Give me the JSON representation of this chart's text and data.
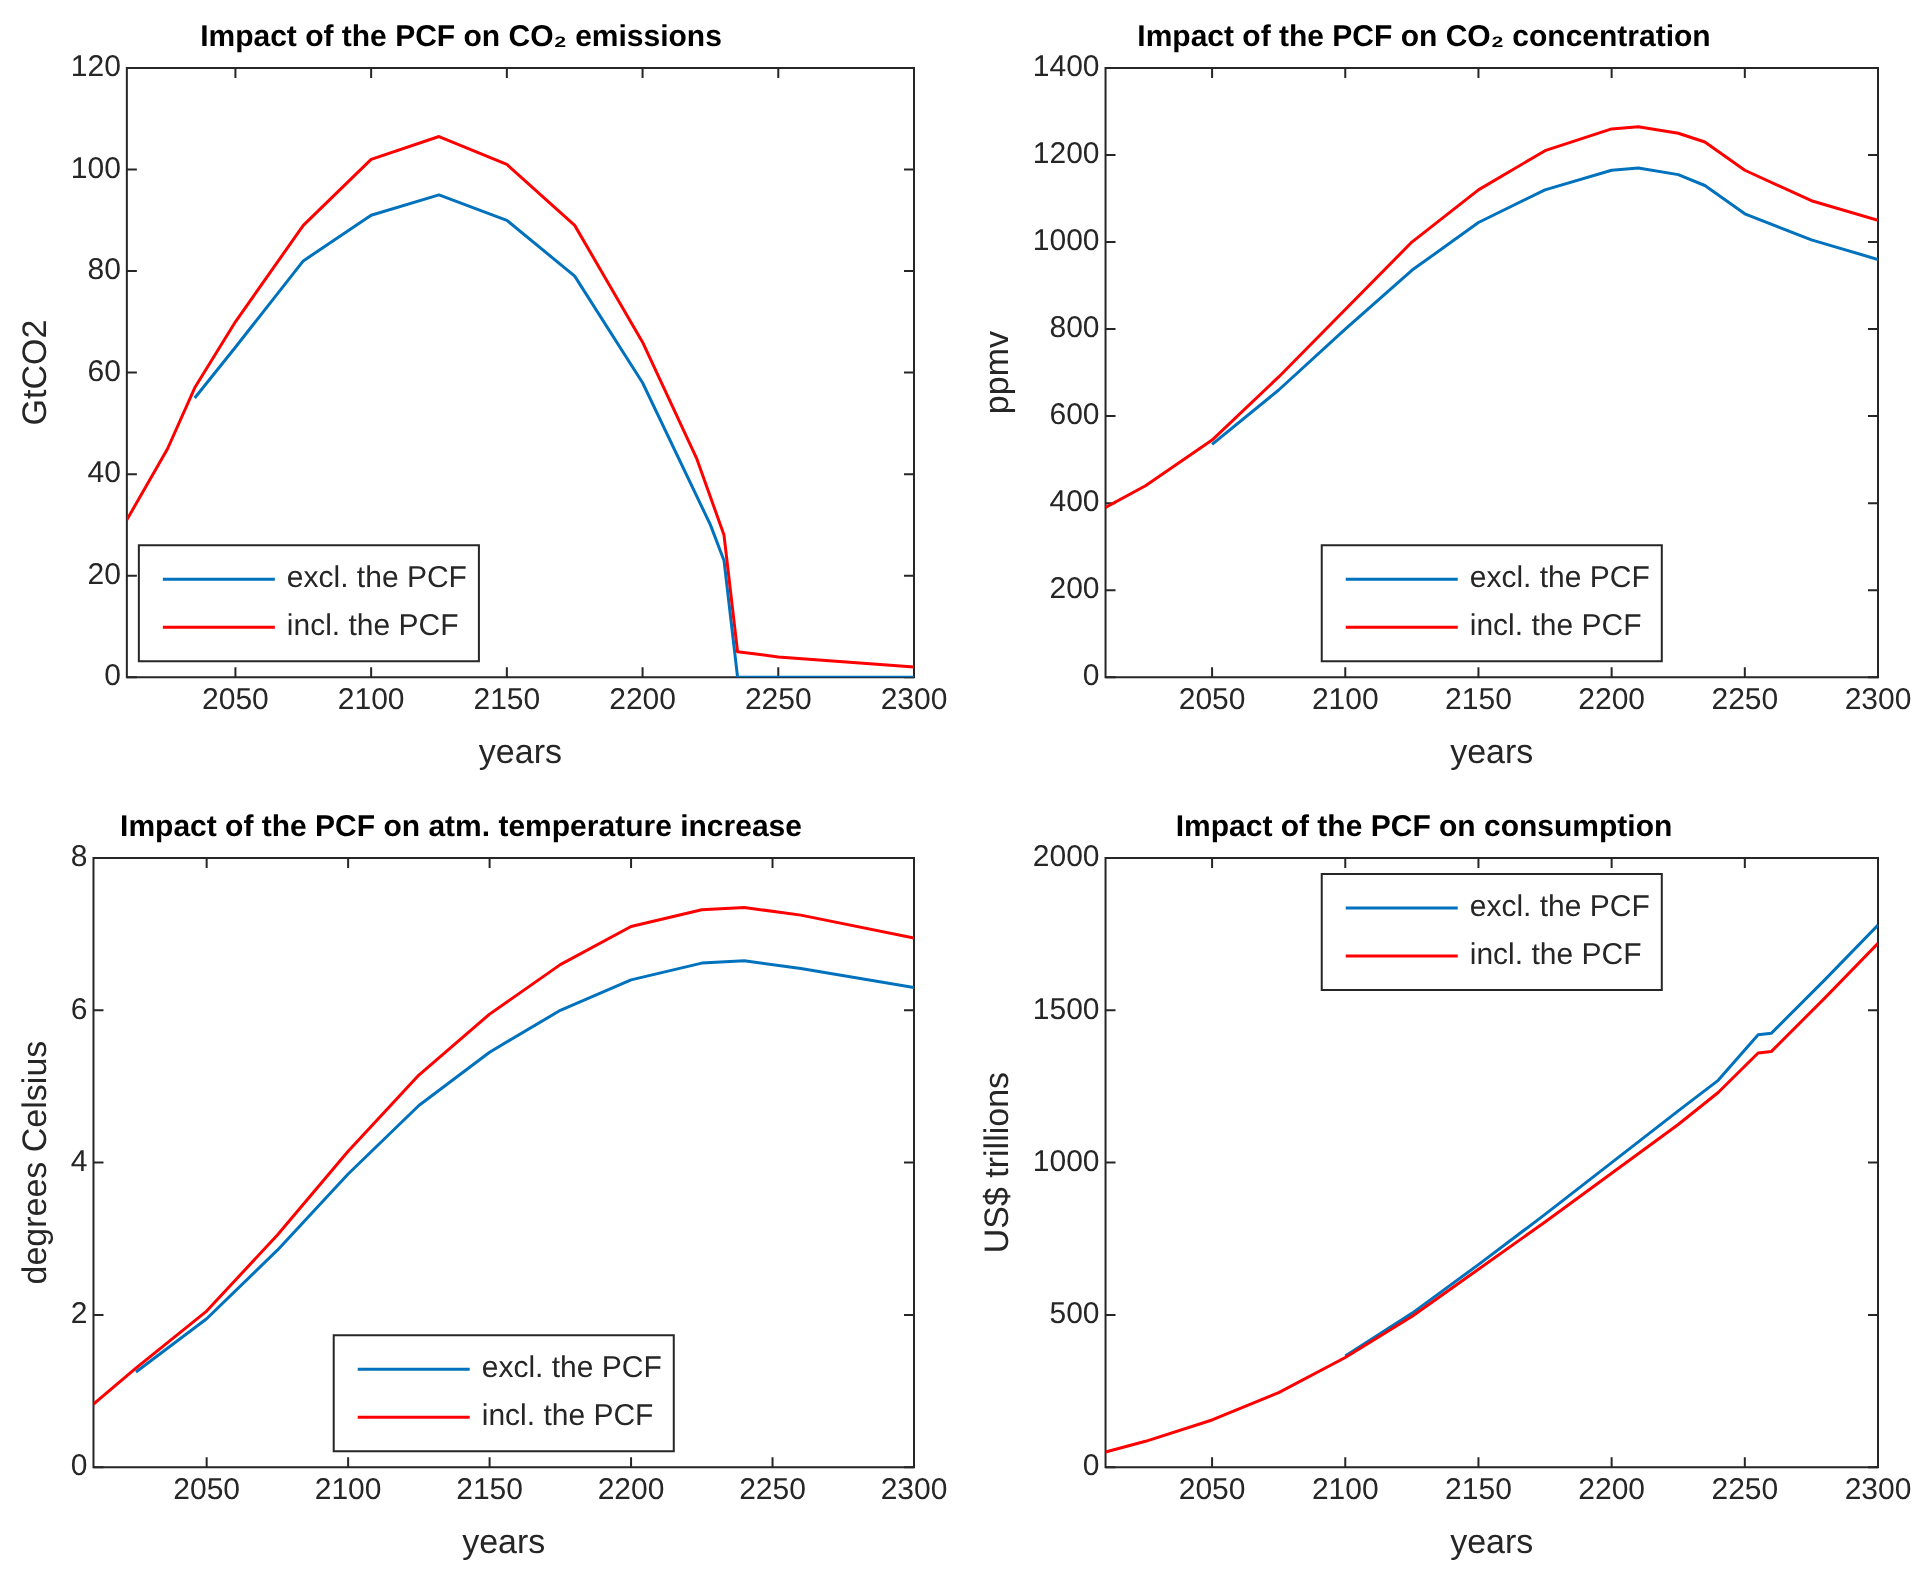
{
  "chart_data": [
    {
      "type": "line",
      "title": "Impact of the PCF on CO₂ emissions",
      "xlabel": "years",
      "ylabel": "GtCO2",
      "xlim": [
        2010,
        2300
      ],
      "xticks": [
        2050,
        2100,
        2150,
        2200,
        2250,
        2300
      ],
      "ylim": [
        0,
        120
      ],
      "yticks": [
        0,
        20,
        40,
        60,
        80,
        100,
        120
      ],
      "grid": false,
      "legend": "bottom left",
      "marker": "none",
      "line_style": "solid",
      "series": [
        {
          "name": "excl. the PCF",
          "color": "#0072bd",
          "x": [
            2035,
            2050,
            2075,
            2100,
            2125,
            2150,
            2175,
            2200,
            2225,
            2230,
            2235,
            2250,
            2275,
            2300
          ],
          "values": [
            55,
            65,
            82,
            91,
            95,
            90,
            79,
            58,
            30,
            23,
            0,
            0,
            0,
            0
          ]
        },
        {
          "name": "incl. the PCF",
          "color": "#ff0000",
          "x": [
            2010,
            2025,
            2035,
            2050,
            2075,
            2100,
            2125,
            2150,
            2175,
            2200,
            2220,
            2230,
            2235,
            2250,
            2275,
            2300
          ],
          "values": [
            31,
            45,
            57,
            70,
            89,
            102,
            106.5,
            101,
            89,
            66,
            43,
            28,
            5,
            4,
            3,
            2
          ]
        }
      ]
    },
    {
      "type": "line",
      "title": "Impact of the PCF on CO₂ concentration",
      "xlabel": "years",
      "ylabel": "ppmv",
      "xlim": [
        2010,
        2300
      ],
      "xticks": [
        2050,
        2100,
        2150,
        2200,
        2250,
        2300
      ],
      "ylim": [
        0,
        1400
      ],
      "yticks": [
        0,
        200,
        400,
        600,
        800,
        1000,
        1200,
        1400
      ],
      "grid": false,
      "legend": "bottom",
      "marker": "none",
      "line_style": "solid",
      "series": [
        {
          "name": "excl. the PCF",
          "color": "#0072bd",
          "x": [
            2050,
            2075,
            2100,
            2125,
            2150,
            2175,
            2200,
            2210,
            2225,
            2235,
            2250,
            2275,
            2300
          ],
          "values": [
            535,
            660,
            800,
            935,
            1045,
            1120,
            1165,
            1170,
            1155,
            1130,
            1065,
            1005,
            960
          ]
        },
        {
          "name": "incl. the PCF",
          "color": "#ff0000",
          "x": [
            2010,
            2025,
            2050,
            2075,
            2100,
            2125,
            2150,
            2175,
            2200,
            2210,
            2225,
            2235,
            2250,
            2275,
            2300
          ],
          "values": [
            390,
            440,
            545,
            690,
            845,
            1000,
            1120,
            1210,
            1260,
            1265,
            1250,
            1230,
            1165,
            1095,
            1050
          ]
        }
      ]
    },
    {
      "type": "line",
      "title": "Impact of the PCF on atm. temperature increase",
      "xlabel": "years",
      "ylabel": "degrees Celsius",
      "xlim": [
        2010,
        2300
      ],
      "xticks": [
        2050,
        2100,
        2150,
        2200,
        2250,
        2300
      ],
      "ylim": [
        0,
        8
      ],
      "yticks": [
        0,
        2,
        4,
        6,
        8
      ],
      "grid": false,
      "legend": "bottom",
      "marker": "none",
      "line_style": "solid",
      "series": [
        {
          "name": "excl. the PCF",
          "color": "#0072bd",
          "x": [
            2025,
            2050,
            2075,
            2100,
            2125,
            2150,
            2175,
            2200,
            2225,
            2240,
            2260,
            2300
          ],
          "values": [
            1.25,
            1.95,
            2.85,
            3.85,
            4.75,
            5.45,
            6.0,
            6.4,
            6.62,
            6.65,
            6.55,
            6.3
          ]
        },
        {
          "name": "incl. the PCF",
          "color": "#ff0000",
          "x": [
            2010,
            2025,
            2050,
            2075,
            2100,
            2125,
            2150,
            2175,
            2200,
            2225,
            2240,
            2260,
            2300
          ],
          "values": [
            0.83,
            1.3,
            2.05,
            3.05,
            4.15,
            5.15,
            5.95,
            6.6,
            7.1,
            7.32,
            7.35,
            7.25,
            6.95
          ]
        }
      ]
    },
    {
      "type": "line",
      "title": "Impact of the PCF on consumption",
      "xlabel": "years",
      "ylabel": "US$ trillions",
      "xlim": [
        2010,
        2300
      ],
      "xticks": [
        2050,
        2100,
        2150,
        2200,
        2250,
        2300
      ],
      "ylim": [
        0,
        2000
      ],
      "yticks": [
        0,
        500,
        1000,
        1500,
        2000
      ],
      "grid": false,
      "legend": "top",
      "marker": "none",
      "line_style": "solid",
      "series": [
        {
          "name": "excl. the PCF",
          "color": "#0072bd",
          "x": [
            2100,
            2125,
            2150,
            2175,
            2200,
            2225,
            2240,
            2255,
            2260,
            2280,
            2300
          ],
          "values": [
            365,
            505,
            665,
            830,
            1000,
            1170,
            1270,
            1420,
            1425,
            1600,
            1780
          ]
        },
        {
          "name": "incl. the PCF",
          "color": "#ff0000",
          "x": [
            2010,
            2025,
            2050,
            2075,
            2100,
            2125,
            2150,
            2175,
            2200,
            2225,
            2240,
            2255,
            2260,
            2280,
            2300
          ],
          "values": [
            50,
            85,
            155,
            245,
            360,
            495,
            650,
            805,
            965,
            1125,
            1230,
            1360,
            1365,
            1540,
            1720
          ]
        }
      ]
    }
  ]
}
